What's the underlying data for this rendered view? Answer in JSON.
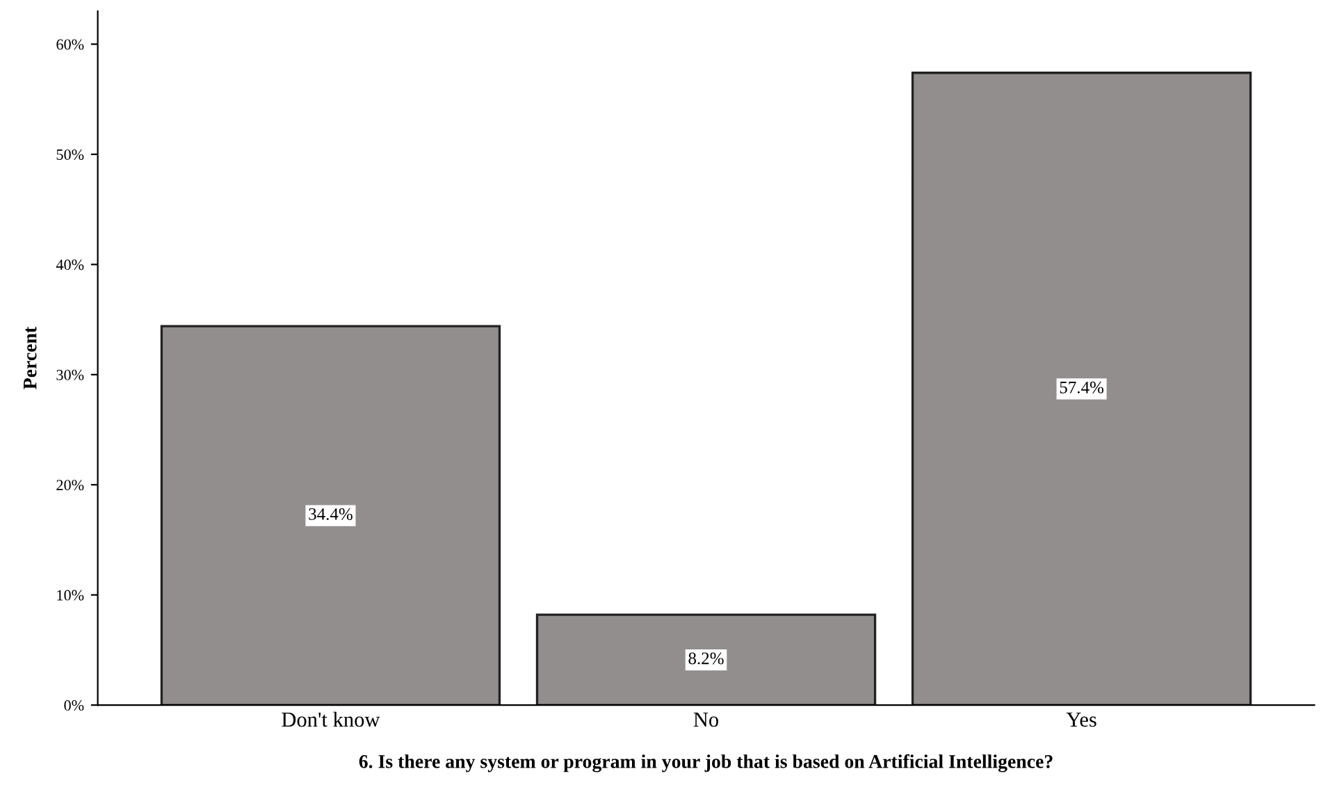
{
  "chart_data": {
    "type": "bar",
    "xlabel": "6. Is there any system or program in your job that is based on Artificial Intelligence?",
    "ylabel": "Percent",
    "categories": [
      "Don't know",
      "No",
      "Yes"
    ],
    "values": [
      34.4,
      8.2,
      57.4
    ],
    "value_labels": [
      "34.4%",
      "8.2%",
      "57.4%"
    ],
    "color": "#928e8e",
    "ylim": [
      0,
      63
    ],
    "yticks": [
      {
        "value": 0,
        "label": "0%"
      },
      {
        "value": 10,
        "label": "10%"
      },
      {
        "value": 20,
        "label": "20%"
      },
      {
        "value": 30,
        "label": "30%"
      },
      {
        "value": 40,
        "label": "40%"
      },
      {
        "value": 50,
        "label": "50%"
      },
      {
        "value": 60,
        "label": "60%"
      }
    ],
    "grid": false,
    "legend": false
  }
}
